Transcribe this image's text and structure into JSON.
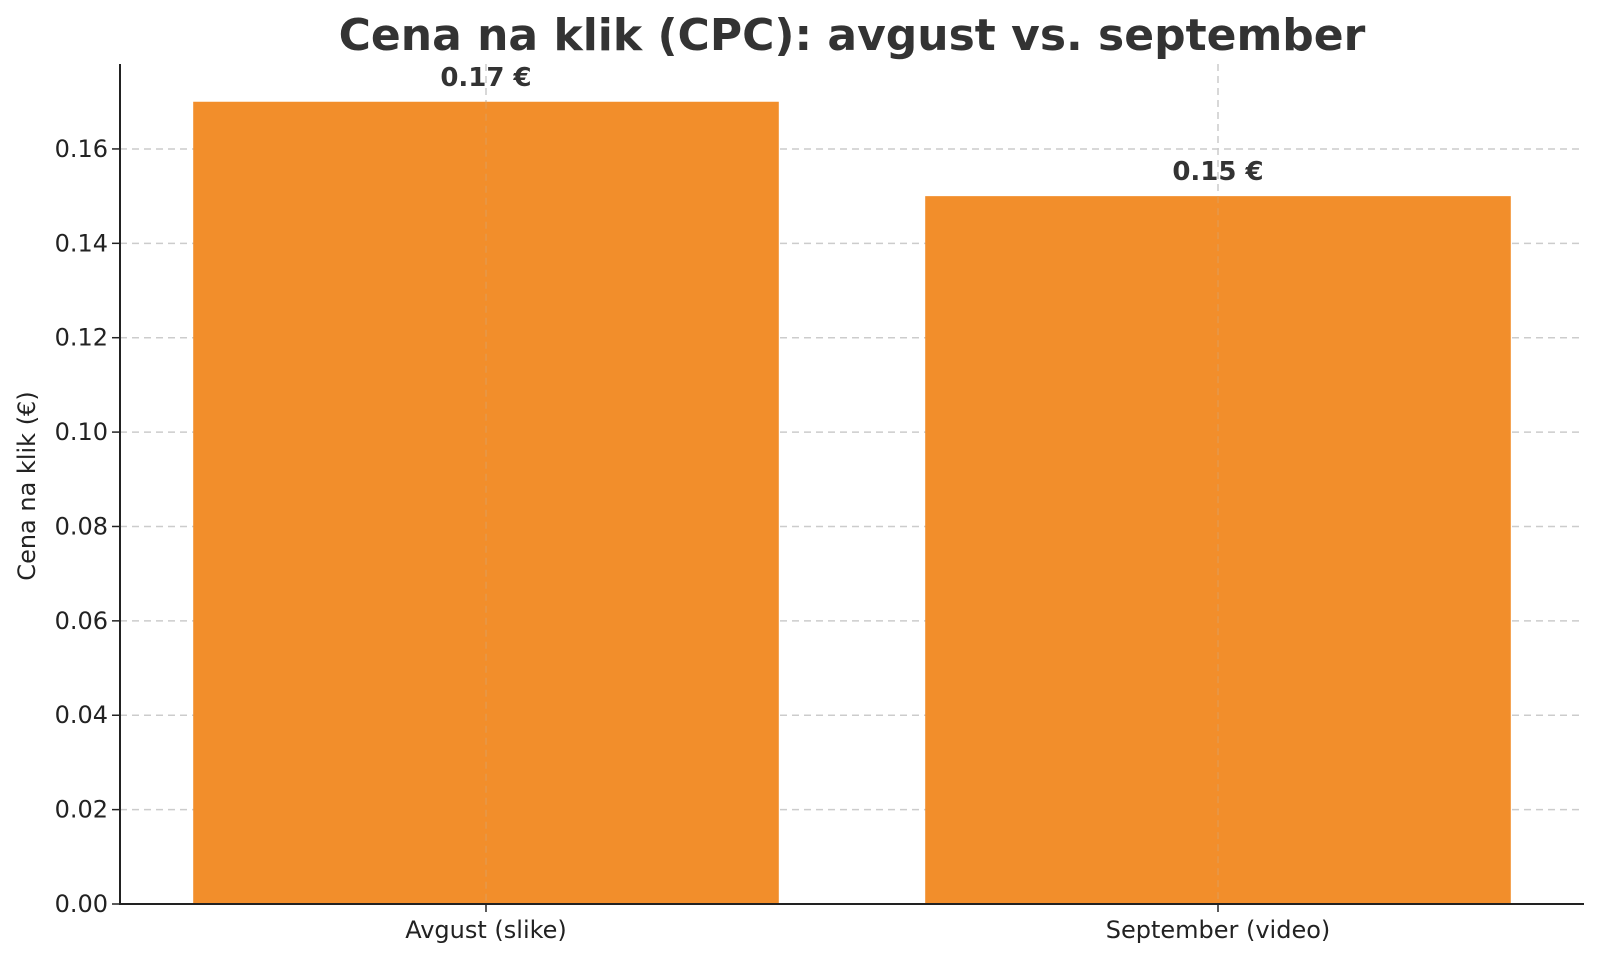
{
  "chart_data": {
    "type": "bar",
    "title": "Cena na klik (CPC): avgust vs. september",
    "xlabel": "",
    "ylabel": "Cena na klik (€)",
    "categories": [
      "Avgust (slike)",
      "September (video)"
    ],
    "values": [
      0.17,
      0.15
    ],
    "data_labels": [
      "0.17 €",
      "0.15 €"
    ],
    "ylim": [
      0,
      0.178
    ],
    "yticks": [
      0.0,
      0.02,
      0.04,
      0.06,
      0.08,
      0.1,
      0.12,
      0.14,
      0.16
    ],
    "ytick_labels": [
      "0.00",
      "0.02",
      "0.04",
      "0.06",
      "0.08",
      "0.10",
      "0.12",
      "0.14",
      "0.16"
    ],
    "grid": true,
    "legend": "none",
    "colors": {
      "bar": "#f28e2b",
      "grid": "#cccccc",
      "axis": "#222222",
      "text": "#333333"
    }
  }
}
